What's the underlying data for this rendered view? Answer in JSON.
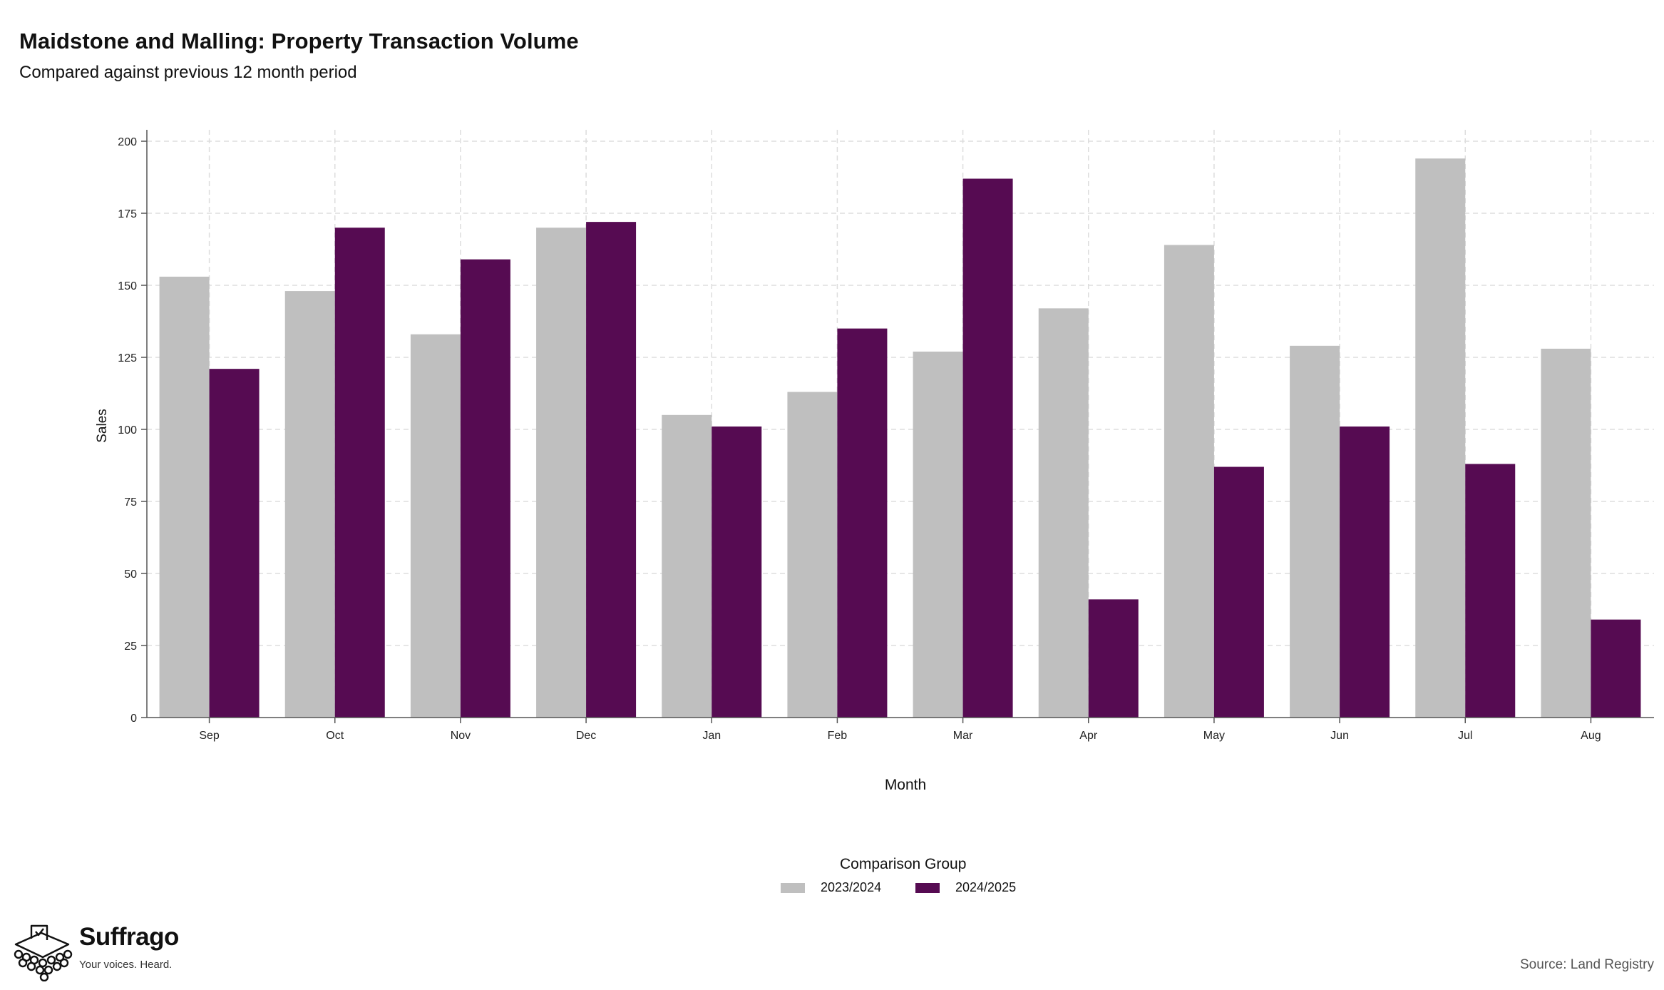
{
  "header": {
    "title": "Maidstone and Malling: Property Transaction Volume",
    "subtitle": "Compared against previous 12 month period"
  },
  "chart_data": {
    "type": "bar",
    "categories": [
      "Sep",
      "Oct",
      "Nov",
      "Dec",
      "Jan",
      "Feb",
      "Mar",
      "Apr",
      "May",
      "Jun",
      "Jul",
      "Aug"
    ],
    "series": [
      {
        "name": "2023/2024",
        "color": "#bfbfbf",
        "values": [
          153,
          148,
          133,
          170,
          105,
          113,
          127,
          142,
          164,
          129,
          194,
          128
        ]
      },
      {
        "name": "2024/2025",
        "color": "#560b52",
        "values": [
          121,
          170,
          159,
          172,
          101,
          135,
          187,
          41,
          87,
          101,
          88,
          34
        ]
      }
    ],
    "xlabel": "Month",
    "ylabel": "Sales",
    "ylim": [
      0,
      200
    ],
    "yticks": [
      0,
      25,
      50,
      75,
      100,
      125,
      150,
      175,
      200
    ],
    "grid": true,
    "legend": {
      "title": "Comparison Group",
      "position": "bottom"
    }
  },
  "footer": {
    "brand_name": "Suffrago",
    "brand_tagline": "Your voices. Heard.",
    "source": "Source: Land Registry"
  }
}
